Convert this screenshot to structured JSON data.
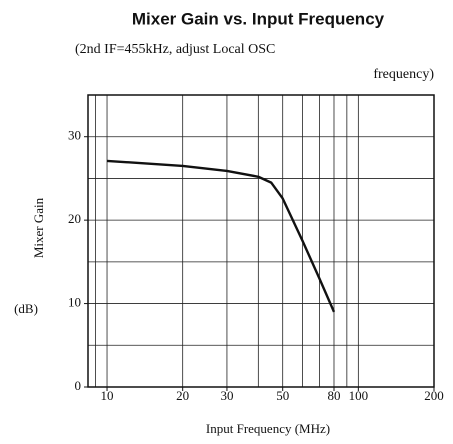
{
  "chart_data": {
    "type": "line",
    "title": "Mixer Gain vs. Input Frequency",
    "subtitle": [
      "(2nd IF=455kHz, adjust Local OSC",
      "frequency)"
    ],
    "x_label": "Input Frequency (MHz)",
    "y_label": "Mixer Gain",
    "y_unit": "(dB)",
    "x": [
      10,
      20,
      30,
      40,
      45,
      50,
      60,
      70,
      80
    ],
    "series": [
      {
        "name": "Mixer Gain",
        "color": "#111111",
        "values": [
          27.1,
          26.5,
          25.9,
          25.2,
          24.5,
          22.6,
          17.5,
          13,
          9
        ]
      }
    ],
    "xscale": "log",
    "xlim": [
      8.4,
      200
    ],
    "xticks": [
      10,
      20,
      30,
      50,
      80,
      100,
      200
    ],
    "xgrid": [
      9,
      10,
      20,
      30,
      40,
      50,
      60,
      70,
      80,
      90,
      100
    ],
    "ylim": [
      0,
      35
    ],
    "yticks": [
      0,
      10,
      20,
      30
    ],
    "ygrid": [
      5,
      10,
      15,
      20,
      25,
      30
    ],
    "grid": true
  }
}
